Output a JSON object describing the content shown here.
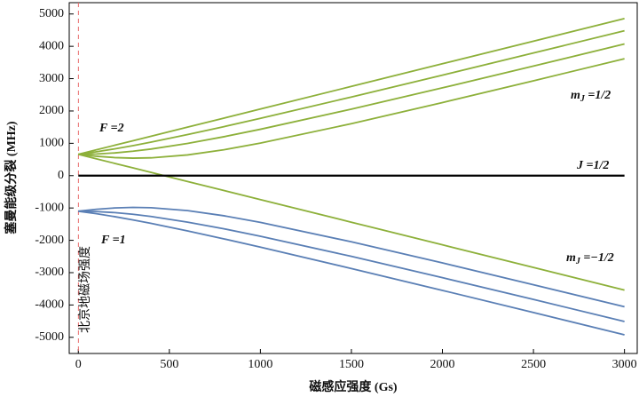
{
  "chart_data": {
    "type": "line",
    "x_label": "磁感应强度 (Gs)",
    "y_label": "塞曼能级分裂 (MHz)",
    "x": [
      0,
      100,
      200,
      300,
      400,
      600,
      800,
      1000,
      1500,
      2000,
      2500,
      3000
    ],
    "series": [
      {
        "color": "#8db03a",
        "values": [
          660,
          800,
          940,
          1080,
          1220,
          1500,
          1780,
          2060,
          2760,
          3460,
          4160,
          4860
        ]
      },
      {
        "color": "#8db03a",
        "values": [
          660,
          738,
          828,
          929,
          1037,
          1270,
          1516,
          1772,
          2432,
          3108,
          3793,
          4482
        ]
      },
      {
        "color": "#8db03a",
        "values": [
          660,
          671,
          703,
          755,
          823,
          997,
          1204,
          1434,
          2057,
          2715,
          3389,
          4071
        ]
      },
      {
        "color": "#8db03a",
        "values": [
          660,
          599,
          559,
          542,
          551,
          641,
          801,
          1006,
          1607,
          2260,
          2934,
          3616
        ]
      },
      {
        "color": "#8db03a",
        "values": [
          660,
          520,
          380,
          240,
          100,
          -180,
          -460,
          -740,
          -1440,
          -2140,
          -2840,
          -3540
        ]
      },
      {
        "color": "#5a7fb5",
        "values": [
          -1100,
          -1039,
          -999,
          -982,
          -991,
          -1081,
          -1241,
          -1446,
          -2047,
          -2700,
          -3374,
          -4056
        ]
      },
      {
        "color": "#5a7fb5",
        "values": [
          -1100,
          -1111,
          -1143,
          -1195,
          -1263,
          -1437,
          -1644,
          -1874,
          -2497,
          -3155,
          -3829,
          -4511
        ]
      },
      {
        "color": "#5a7fb5",
        "values": [
          -1100,
          -1178,
          -1268,
          -1369,
          -1477,
          -1710,
          -1956,
          -2212,
          -2872,
          -3548,
          -4233,
          -4922
        ]
      },
      {
        "color": "#000000",
        "values": [
          0,
          0,
          0,
          0,
          0,
          0,
          0,
          0,
          0,
          0,
          0,
          0
        ]
      }
    ],
    "xlim": [
      -50,
      3070
    ],
    "ylim": [
      -5500,
      5350
    ],
    "xticks": [
      0,
      500,
      1000,
      1500,
      2000,
      2500,
      3000
    ],
    "yticks": [
      -5000,
      -4000,
      -3000,
      -2000,
      -1000,
      0,
      1000,
      2000,
      3000,
      4000,
      5000
    ],
    "vline": {
      "x": 0.5,
      "label": "北京地磁场强度",
      "color": "#e86a6a"
    },
    "annotations": [
      {
        "text": "F =2",
        "color": "#8db03a"
      },
      {
        "text": "F =1",
        "color": "#5a7fb5"
      },
      {
        "text": [
          "m",
          "J",
          " =1/2"
        ],
        "color": "#111111"
      },
      {
        "text": "J =1/2",
        "color": "#111111"
      },
      {
        "text": [
          "m",
          "J",
          " =−1/2"
        ],
        "color": "#111111"
      }
    ]
  }
}
